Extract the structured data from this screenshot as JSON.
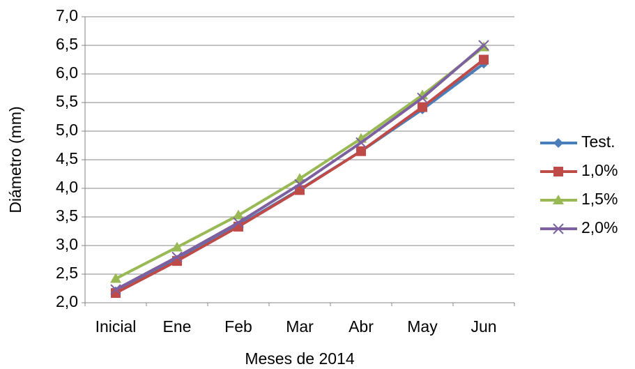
{
  "chart_data": {
    "type": "line",
    "x_label": "Meses de 2014",
    "y_label": "Diámetro (mm)",
    "categories": [
      "Inicial",
      "Ene",
      "Feb",
      "Mar",
      "Abr",
      "May",
      "Jun"
    ],
    "series": [
      {
        "name": "Test.",
        "color": "#4a7ebb",
        "marker": "diamond",
        "values": [
          2.2,
          2.75,
          3.35,
          3.98,
          4.65,
          5.38,
          6.18
        ]
      },
      {
        "name": "1,0%",
        "color": "#be4b48",
        "marker": "square",
        "values": [
          2.17,
          2.73,
          3.33,
          3.97,
          4.65,
          5.42,
          6.25
        ]
      },
      {
        "name": "1,5%",
        "color": "#98b954",
        "marker": "triangle",
        "values": [
          2.42,
          2.97,
          3.53,
          4.17,
          4.87,
          5.63,
          6.47
        ]
      },
      {
        "name": "2,0%",
        "color": "#7d60a0",
        "marker": "x",
        "values": [
          2.23,
          2.8,
          3.4,
          4.07,
          4.8,
          5.58,
          6.5
        ]
      }
    ],
    "ylim": [
      2,
      7
    ],
    "yticks": [
      {
        "value": 2,
        "label": "2,0"
      },
      {
        "value": 2.5,
        "label": "2,5"
      },
      {
        "value": 3,
        "label": "3,0"
      },
      {
        "value": 3.5,
        "label": "3,5"
      },
      {
        "value": 4,
        "label": "4,0"
      },
      {
        "value": 4.5,
        "label": "4,5"
      },
      {
        "value": 5,
        "label": "5,0"
      },
      {
        "value": 5.5,
        "label": "5,5"
      },
      {
        "value": 6,
        "label": "6,0"
      },
      {
        "value": 6.5,
        "label": "6,5"
      },
      {
        "value": 7,
        "label": "7,0"
      }
    ],
    "grid": true,
    "legend": "right"
  }
}
